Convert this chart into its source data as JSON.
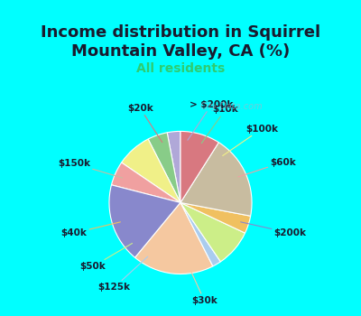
{
  "title": "Income distribution in Squirrel\nMountain Valley, CA (%)",
  "subtitle": "All residents",
  "title_color": "#1a1a2e",
  "subtitle_color": "#2ecc71",
  "background_top": "#00ffff",
  "background_chart": "#e8f5e9",
  "labels": [
    "> $200k",
    "$10k",
    "$100k",
    "$60k",
    "$200k",
    "$30k",
    "$125k",
    "$50k",
    "$40k",
    "$150k",
    "$20k"
  ],
  "values": [
    3.0,
    4.5,
    8.0,
    5.5,
    18.0,
    18.5,
    2.0,
    8.5,
    4.0,
    19.0,
    9.0
  ],
  "colors": [
    "#b0a8d8",
    "#88cc88",
    "#f0f088",
    "#f0a0a0",
    "#8888cc",
    "#f5c8a0",
    "#aaccee",
    "#ccee88",
    "#f0c060",
    "#c8bca0",
    "#d87880"
  ],
  "startangle": 90,
  "wedge_edge_color": "white",
  "wedge_linewidth": 0.8,
  "label_fontsize": 7.5,
  "label_color": "#1a1a2e",
  "watermark": "City-Data.com"
}
